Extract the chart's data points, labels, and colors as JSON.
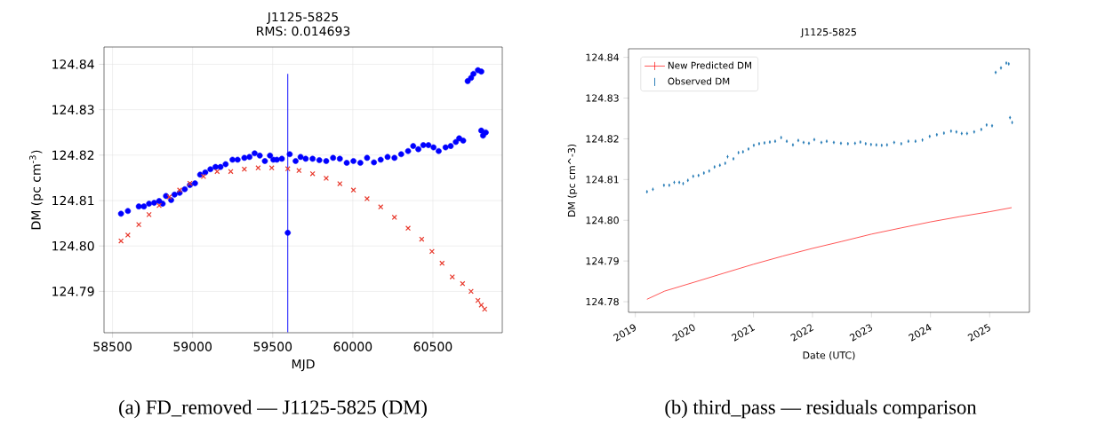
{
  "chart_data": [
    {
      "type": "scatter",
      "title": "J1125-5825",
      "subtitle": "RMS: 0.014693",
      "xlabel": "MJD",
      "ylabel": "DM (pc cm$^{-3}$)",
      "xlim": [
        58447,
        60933
      ],
      "ylim": [
        124.7809,
        124.8438
      ],
      "xticks": [
        58500,
        59000,
        59500,
        60000,
        60500
      ],
      "yticks": [
        {
          "value": 124.79,
          "label": "124.79"
        },
        {
          "value": 124.8,
          "label": "124.80"
        },
        {
          "value": 124.81,
          "label": "124.81"
        },
        {
          "value": 124.82,
          "label": "124.82"
        },
        {
          "value": 124.83,
          "label": "124.83"
        },
        {
          "value": 124.84,
          "label": "124.84"
        }
      ],
      "grid": true,
      "series": [
        {
          "color": "#0000ff",
          "marker": "circle",
          "x": [
            58553,
            58596,
            58664,
            58696,
            58728,
            58760,
            58791,
            58813,
            58834,
            58866,
            58887,
            58919,
            58951,
            58983,
            59015,
            59047,
            59079,
            59111,
            59143,
            59174,
            59206,
            59249,
            59281,
            59323,
            59355,
            59387,
            59419,
            59451,
            59483,
            59504,
            59526,
            59557,
            59594,
            59606,
            59643,
            59674,
            59706,
            59749,
            59791,
            59834,
            59877,
            59919,
            59962,
            60004,
            60047,
            60089,
            60132,
            60174,
            60217,
            60260,
            60302,
            60345,
            60377,
            60409,
            60440,
            60472,
            60504,
            60536,
            60579,
            60611,
            60643,
            60664,
            60689,
            60717,
            60738,
            60753,
            60781,
            60802,
            60802,
            60813,
            60830
          ],
          "values": [
            124.8071,
            124.8077,
            124.8087,
            124.8087,
            124.8093,
            124.8095,
            124.8099,
            124.8093,
            124.811,
            124.8101,
            124.8113,
            124.8117,
            124.8125,
            124.8134,
            124.8138,
            124.8157,
            124.8162,
            124.8169,
            124.8174,
            124.8174,
            124.818,
            124.819,
            124.819,
            124.8194,
            124.8196,
            124.8204,
            124.8199,
            124.8187,
            124.8199,
            124.819,
            124.819,
            124.8192,
            124.8029,
            124.8202,
            124.8187,
            124.8196,
            124.8192,
            124.8192,
            124.8189,
            124.8187,
            124.8194,
            124.8192,
            124.8183,
            124.8187,
            124.8183,
            124.8194,
            124.8184,
            124.819,
            124.8196,
            124.8194,
            124.8202,
            124.8209,
            124.822,
            124.8213,
            124.8222,
            124.8222,
            124.8217,
            124.8209,
            124.8217,
            124.822,
            124.8229,
            124.8237,
            124.8232,
            124.8363,
            124.837,
            124.8379,
            124.8387,
            124.8384,
            124.8254,
            124.8243,
            124.825
          ],
          "errors": [
            null,
            null,
            null,
            null,
            null,
            null,
            null,
            null,
            null,
            null,
            null,
            null,
            null,
            null,
            null,
            null,
            null,
            null,
            null,
            null,
            null,
            null,
            null,
            null,
            null,
            null,
            null,
            null,
            null,
            null,
            null,
            null,
            [
              124.781,
              124.8379
            ],
            null,
            null,
            null,
            null,
            null,
            null,
            null,
            null,
            null,
            null,
            null,
            null,
            null,
            null,
            null,
            null,
            null,
            null,
            null,
            null,
            null,
            null,
            null,
            null,
            null,
            null,
            null,
            null,
            null,
            null,
            null,
            null,
            null,
            null,
            null,
            null,
            null,
            null
          ]
        },
        {
          "color": "#e8392c",
          "marker": "cross",
          "x": [
            58553,
            58596,
            58664,
            58728,
            58791,
            58855,
            58919,
            58983,
            59068,
            59153,
            59238,
            59323,
            59409,
            59494,
            59594,
            59664,
            59749,
            59834,
            59919,
            60004,
            60089,
            60174,
            60260,
            60345,
            60430,
            60494,
            60557,
            60621,
            60685,
            60738,
            60781,
            60802,
            60823
          ],
          "values": [
            124.8011,
            124.8024,
            124.8047,
            124.8069,
            124.8089,
            124.8108,
            124.8123,
            124.8138,
            124.8153,
            124.8164,
            124.8164,
            124.8169,
            124.8172,
            124.8172,
            124.817,
            124.8166,
            124.8159,
            124.8149,
            124.8137,
            124.8123,
            124.8104,
            124.8086,
            124.8063,
            124.8039,
            124.8015,
            124.7988,
            124.7962,
            124.7932,
            124.7917,
            124.79,
            124.788,
            124.787,
            124.7861
          ]
        }
      ],
      "annotations": [
        "(a) FD_removed — J1125-5825 (DM)"
      ]
    },
    {
      "type": "scatter",
      "title": "J1125-5825",
      "xlabel": "Date (UTC)",
      "ylabel": "DM (pc cm^-3)",
      "xlim": [
        "2018-11-20",
        "2025-09-04"
      ],
      "ylim": [
        124.7774,
        124.8421
      ],
      "xticks": [
        "2019",
        "2020",
        "2021",
        "2022",
        "2023",
        "2024",
        "2025"
      ],
      "yticks": [
        {
          "value": 124.78,
          "label": "124.78"
        },
        124.79,
        {
          "value": 124.8,
          "label": "124.80"
        },
        124.81,
        124.82,
        124.83,
        124.84
      ],
      "legend": "top left",
      "series": [
        {
          "name": "New Predicted DM",
          "type": "line",
          "color": "#ff0000",
          "x": [
            "2019-03-14",
            "2019-07-01",
            "2020-01-01",
            "2020-07-01",
            "2021-01-01",
            "2021-07-01",
            "2022-01-01",
            "2022-07-01",
            "2023-01-01",
            "2023-07-01",
            "2024-01-01",
            "2024-07-01",
            "2025-01-01",
            "2025-05-17"
          ],
          "values": [
            124.7806,
            124.7826,
            124.7848,
            124.787,
            124.7892,
            124.7912,
            124.7931,
            124.7948,
            124.7966,
            124.7981,
            124.7996,
            124.8009,
            124.8021,
            124.8031
          ]
        },
        {
          "name": "Observed DM",
          "color": "#1f77b4",
          "marker": "circle",
          "x": [
            "2019-03-14",
            "2019-04-20",
            "2019-06-27",
            "2019-07-30",
            "2019-08-30",
            "2019-09-30",
            "2019-10-24",
            "2019-11-22",
            "2019-12-25",
            "2020-01-27",
            "2020-02-29",
            "2020-04-02",
            "2020-05-05",
            "2020-06-07",
            "2020-07-10",
            "2020-07-25",
            "2020-08-30",
            "2020-09-30",
            "2020-10-28",
            "2020-12-01",
            "2021-01-03",
            "2021-02-05",
            "2021-03-10",
            "2021-04-12",
            "2021-05-15",
            "2021-06-21",
            "2021-07-26",
            "2021-09-02",
            "2021-10-05",
            "2021-11-07",
            "2021-12-10",
            "2022-01-12",
            "2022-02-25",
            "2022-03-30",
            "2022-05-13",
            "2022-06-26",
            "2022-08-08",
            "2022-09-21",
            "2022-10-24",
            "2022-11-26",
            "2022-12-29",
            "2023-01-31",
            "2023-03-05",
            "2023-04-07",
            "2023-05-21",
            "2023-07-04",
            "2023-08-17",
            "2023-09-30",
            "2023-11-12",
            "2023-12-27",
            "2024-02-09",
            "2024-03-24",
            "2024-05-07",
            "2024-06-09",
            "2024-07-12",
            "2024-08-14",
            "2024-09-27",
            "2024-11-10",
            "2024-12-13",
            "2025-01-16",
            "2025-02-07",
            "2025-03-12",
            "2025-04-14",
            "2025-04-29",
            "2025-05-07",
            "2025-05-20"
          ],
          "values": [
            124.807,
            124.8076,
            124.8086,
            124.8086,
            124.8093,
            124.8093,
            124.809,
            124.8098,
            124.8108,
            124.811,
            124.8116,
            124.8121,
            124.8131,
            124.8135,
            124.814,
            124.8156,
            124.8151,
            124.8166,
            124.8168,
            124.8175,
            124.8184,
            124.8188,
            124.819,
            124.8192,
            124.8194,
            124.8203,
            124.8194,
            124.8185,
            124.8196,
            124.8191,
            124.8189,
            124.8198,
            124.8191,
            124.8194,
            124.8191,
            124.8189,
            124.8188,
            124.8189,
            124.8192,
            124.8188,
            124.8186,
            124.8185,
            124.8184,
            124.8185,
            124.8191,
            124.8188,
            124.8194,
            124.8194,
            124.8197,
            124.8206,
            124.821,
            124.8214,
            124.8219,
            124.8217,
            124.8213,
            124.8213,
            124.8217,
            124.8223,
            124.8234,
            124.8232,
            124.8363,
            124.8374,
            124.8386,
            124.8384,
            124.8252,
            124.824
          ],
          "errors": [
            0.0004,
            0.0004,
            0.0004,
            0.0004,
            0.0004,
            0.0004,
            0.0004,
            0.0004,
            0.0004,
            0.0004,
            0.0004,
            0.0004,
            0.0004,
            0.0004,
            0.0004,
            0.0004,
            0.0004,
            0.0004,
            0.0004,
            0.0004,
            0.0004,
            0.0004,
            0.0004,
            0.0004,
            0.0004,
            0.0004,
            0.0004,
            0.0004,
            0.0004,
            0.0004,
            0.0004,
            0.0004,
            0.0004,
            0.0004,
            0.0004,
            0.0004,
            0.0004,
            0.0004,
            0.0004,
            0.0004,
            0.0004,
            0.0004,
            0.0004,
            0.0004,
            0.0004,
            0.0004,
            0.0004,
            0.0004,
            0.0004,
            0.0004,
            0.0004,
            0.0004,
            0.0004,
            0.0004,
            0.0004,
            0.0004,
            0.0004,
            0.0004,
            0.0004,
            0.0004,
            0.0004,
            0.0004,
            0.0004,
            0.0004,
            0.0004,
            0.0004
          ]
        }
      ],
      "annotations": [
        "(b) third_pass — residuals comparison"
      ]
    }
  ]
}
